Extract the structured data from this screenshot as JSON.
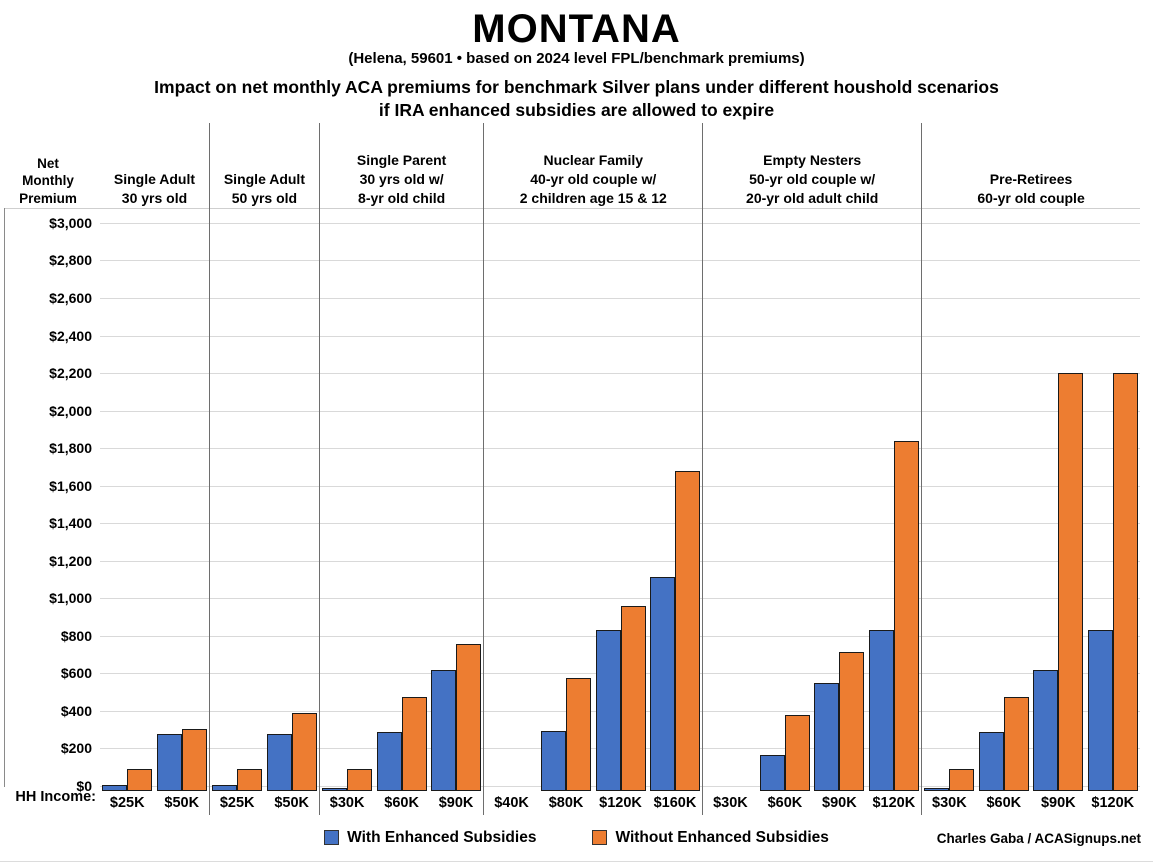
{
  "chart_data": {
    "type": "bar",
    "title": "MONTANA",
    "subtitle": "(Helena, 59601 • based on 2024 level FPL/benchmark premiums)",
    "statement_line1": "Impact on net monthly ACA premiums for benchmark Silver plans under different houshold scenarios",
    "statement_line2": "if IRA enhanced subsidies are allowed to expire",
    "y_axis_title_lines": [
      "Net",
      "Monthly",
      "Premium"
    ],
    "ylim": [
      0,
      3080
    ],
    "y_tick_step": 200,
    "y_tick_labels": [
      "$0",
      "$200",
      "$400",
      "$600",
      "$800",
      "$1,000",
      "$1,200",
      "$1,400",
      "$1,600",
      "$1,800",
      "$2,000",
      "$2,200",
      "$2,400",
      "$2,600",
      "$2,800",
      "$3,000"
    ],
    "grid": true,
    "legend_position": "bottom",
    "hh_income_label": "HH Income:",
    "series": [
      {
        "name": "With Enhanced Subsidies",
        "color": "#4472C4"
      },
      {
        "name": "Without Enhanced Subsidies",
        "color": "#ED7D31"
      }
    ],
    "groups": [
      {
        "label_lines": [
          "Single Adult",
          "30 yrs old"
        ],
        "categories": [
          "$25K",
          "$50K"
        ],
        "with_enhanced": [
          20,
          295
        ],
        "without_enhanced": [
          105,
          320
        ]
      },
      {
        "label_lines": [
          "Single Adult",
          "50 yrs old"
        ],
        "categories": [
          "$25K",
          "$50K"
        ],
        "with_enhanced": [
          20,
          295
        ],
        "without_enhanced": [
          105,
          405
        ]
      },
      {
        "label_lines": [
          "Single Parent",
          "30 yrs old w/",
          "8-yr old child"
        ],
        "categories": [
          "$30K",
          "$60K",
          "$90K"
        ],
        "with_enhanced": [
          5,
          305,
          635
        ],
        "without_enhanced": [
          105,
          490,
          775
        ]
      },
      {
        "label_lines": [
          "Nuclear Family",
          "40-yr old couple w/",
          "2 children age 15 & 12"
        ],
        "categories": [
          "$40K",
          "$80K",
          "$120K",
          "$160K"
        ],
        "with_enhanced": [
          0,
          310,
          845,
          1130
        ],
        "without_enhanced": [
          0,
          590,
          975,
          1695
        ]
      },
      {
        "label_lines": [
          "Empty Nesters",
          "50-yr old couple w/",
          "20-yr old adult child"
        ],
        "categories": [
          "$30K",
          "$60K",
          "$90K",
          "$120K"
        ],
        "with_enhanced": [
          0,
          180,
          565,
          845
        ],
        "without_enhanced": [
          0,
          395,
          730,
          1855
        ]
      },
      {
        "label_lines": [
          "Pre-Retirees",
          "60-yr old couple"
        ],
        "categories": [
          "$30K",
          "$60K",
          "$90K",
          "$120K"
        ],
        "with_enhanced": [
          5,
          305,
          635,
          845
        ],
        "without_enhanced": [
          105,
          490,
          2215,
          2215
        ]
      }
    ],
    "credit": "Charles Gaba / ACASignups.net",
    "colors": {
      "with_enhanced": "#4472C4",
      "without_enhanced": "#ED7D31",
      "bar_border": "#1a1a1a",
      "gridline": "#d9d9d9",
      "separator": "#6e6e6e"
    }
  }
}
